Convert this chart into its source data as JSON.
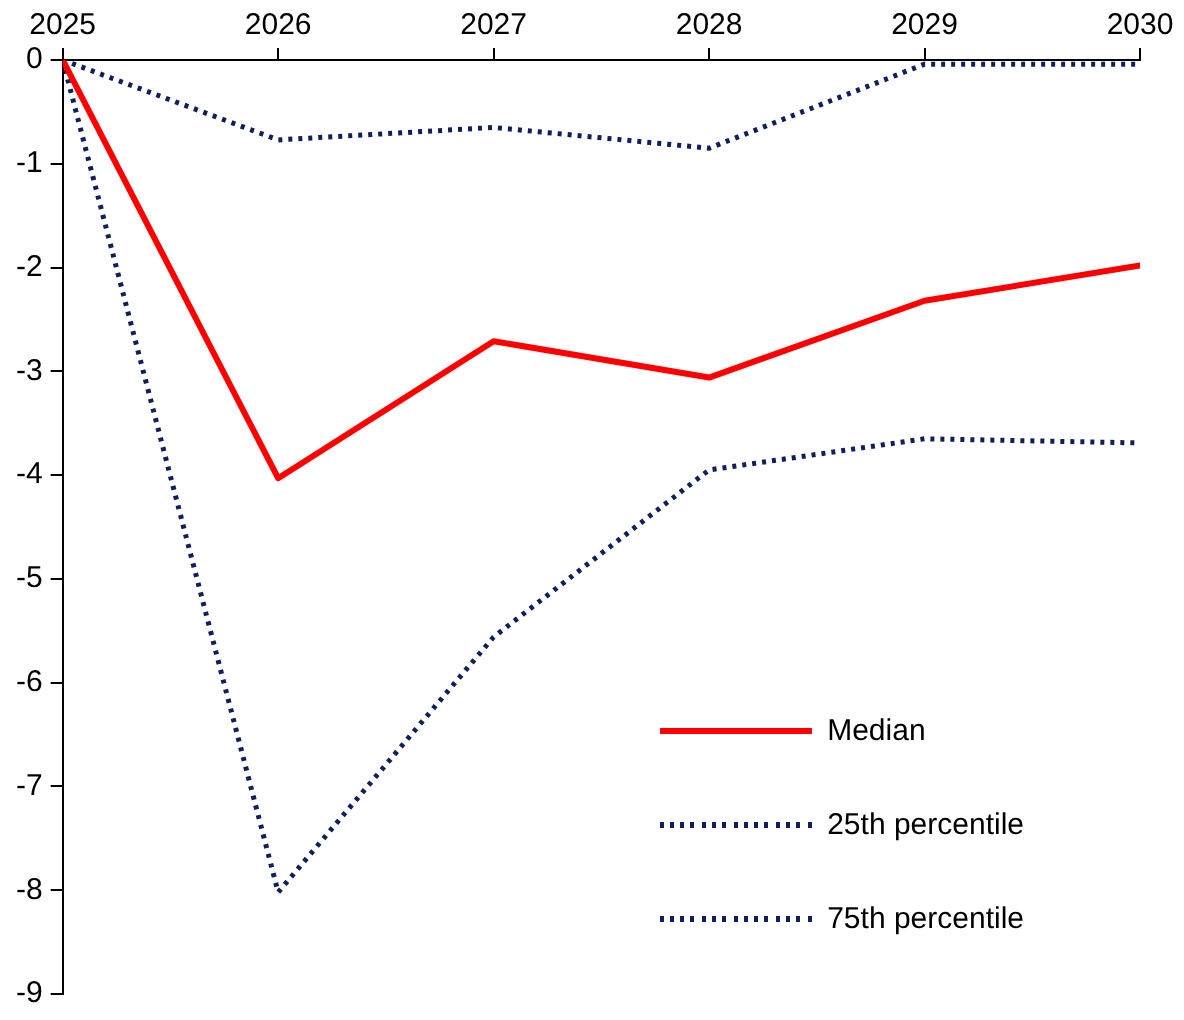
{
  "chart_data": {
    "type": "line",
    "x": [
      2025,
      2026,
      2027,
      2028,
      2029,
      2030
    ],
    "series": [
      {
        "name": "Median",
        "color": "#ff0000",
        "line_style": "solid",
        "values": [
          0,
          -4.03,
          -2.71,
          -3.06,
          -2.32,
          -1.98
        ]
      },
      {
        "name": "25th percentile",
        "color": "#0d1f5c",
        "line_style": "dotted",
        "values": [
          0,
          -8.02,
          -5.56,
          -3.95,
          -3.65,
          -3.69
        ]
      },
      {
        "name": "75th percentile",
        "color": "#0d1f5c",
        "line_style": "dotted",
        "values": [
          0,
          -0.77,
          -0.65,
          -0.85,
          -0.04,
          -0.04
        ]
      }
    ],
    "xlim": [
      2025,
      2030
    ],
    "xticks": [
      2025,
      2026,
      2027,
      2028,
      2029,
      2030
    ],
    "ylim": [
      -9,
      0
    ],
    "yticks": [
      0,
      -1,
      -2,
      -3,
      -4,
      -5,
      -6,
      -7,
      -8,
      -9
    ],
    "grid": false,
    "legend": "bottom right",
    "marker": "none"
  }
}
